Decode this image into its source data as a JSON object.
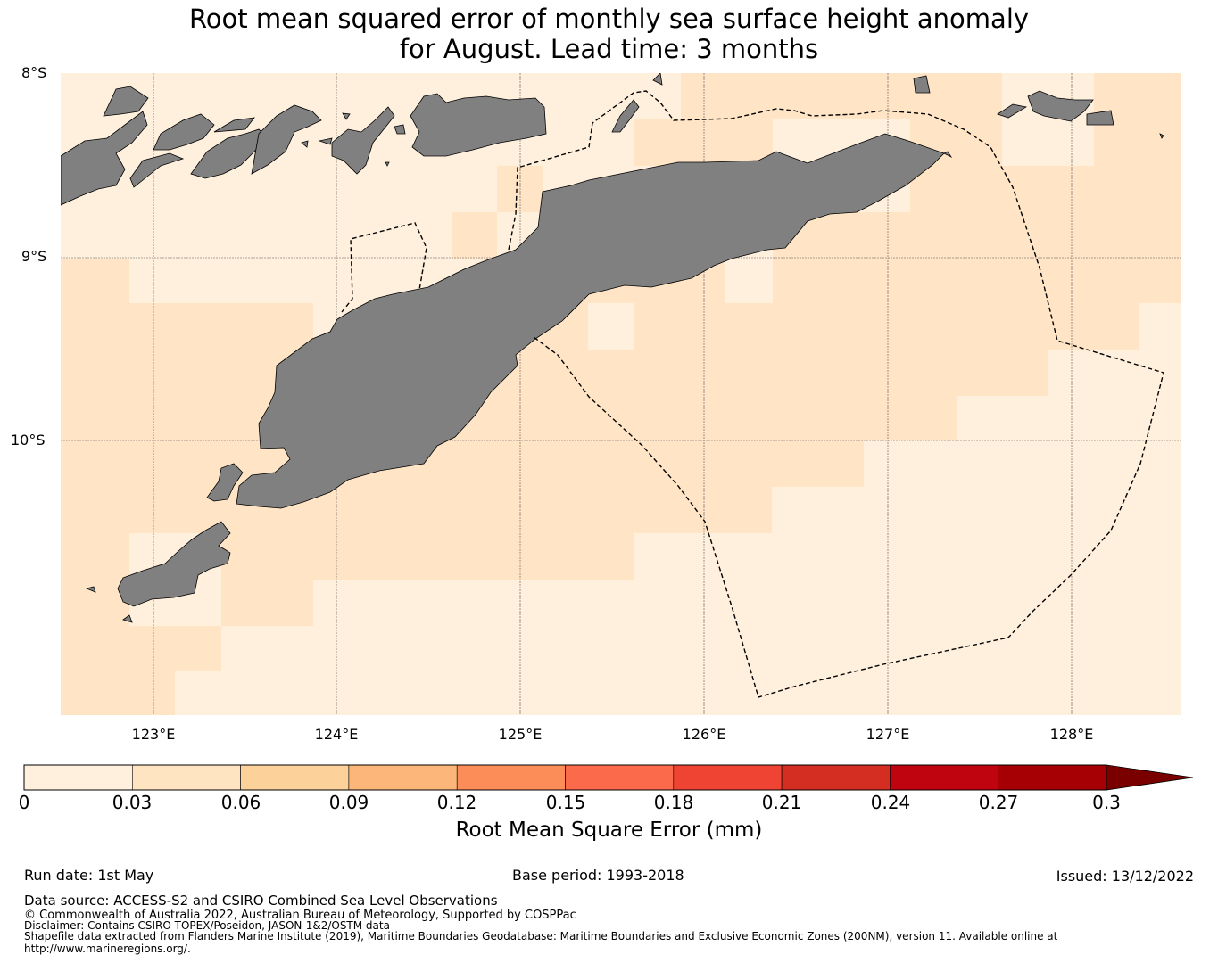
{
  "title_line1": "Root mean squared error of monthly sea surface height anomaly",
  "title_line2": "for August. Lead time: 3 months",
  "lat_labels": [
    "8°S",
    "9°S",
    "10°S"
  ],
  "lon_labels": [
    "123°E",
    "124°E",
    "125°E",
    "126°E",
    "127°E",
    "128°E"
  ],
  "colorbar": {
    "label": "Root Mean Square Error (mm)",
    "ticks": [
      "0",
      "0.03",
      "0.06",
      "0.09",
      "0.12",
      "0.15",
      "0.18",
      "0.21",
      "0.24",
      "0.27",
      "0.3"
    ],
    "colors": [
      "#fff0dd",
      "#ffe4c2",
      "#fdd19a",
      "#fdb679",
      "#fc8d59",
      "#fb6a4a",
      "#ef4433",
      "#d42d22",
      "#c0040f",
      "#a60005"
    ],
    "extend_color": "#7a0000"
  },
  "colors": {
    "land": "#808080",
    "bin0": "#fff0dd",
    "bin1": "#ffe5c6",
    "coast": "#000000",
    "eez": "#000000"
  },
  "footer": {
    "run_date": "Run date: 1st May",
    "base_period": "Base period: 1993-2018",
    "issued": "Issued: 13/12/2022",
    "data_source": "Data source: ACCESS-S2 and CSIRO Combined Sea Level Observations",
    "copyright": "© Commonwealth of Australia 2022, Australian Bureau of Meteorology, Supported by COSPPac",
    "disclaimer": "Disclaimer: Contains CSIRO TOPEX/Poseidon, JASON-1&2/OSTM data",
    "shapefile": "Shapefile data extracted from Flanders Marine Institute (2019), Maritime Boundaries Geodatabase: Maritime Boundaries and Exclusive Economic Zones (200NM), version 11. Available online at",
    "url": "http://www.marineregions.org/."
  }
}
